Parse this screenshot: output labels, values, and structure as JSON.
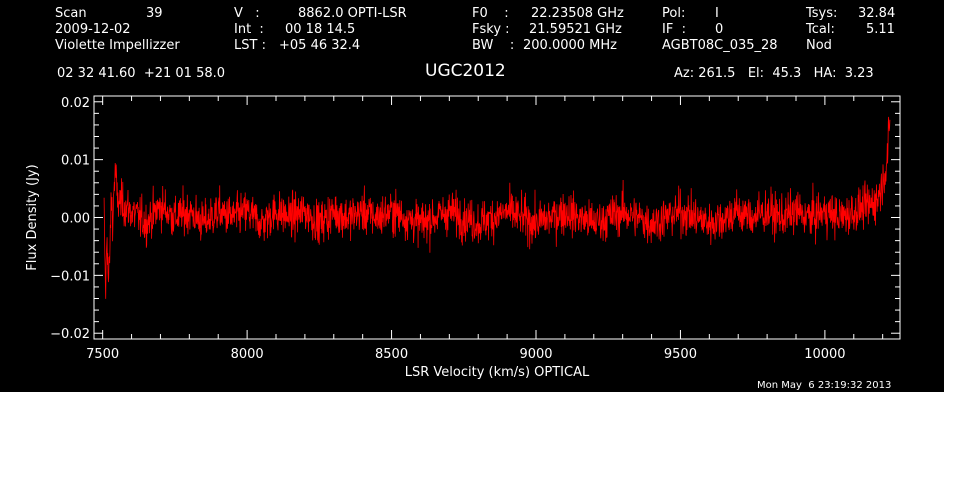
{
  "header": {
    "col1": {
      "scan_label": "Scan",
      "scan_value": "39",
      "date": "2009-12-02",
      "observer": "Violette Impellizzer"
    },
    "col2": {
      "v_label": "V   :",
      "v_value": "8862.0 OPTI-LSR",
      "int_label": "Int  :",
      "int_value": "00 18 14.5",
      "lst_label": "LST :",
      "lst_value": "+05 46 32.4"
    },
    "col3": {
      "f0_label": "F0    :",
      "f0_value": "22.23508 GHz",
      "fsky_label": "Fsky :",
      "fsky_value": "21.59521 GHz",
      "bw_label": "BW    :",
      "bw_value": "200.0000 MHz"
    },
    "col4": {
      "pol_label": "Pol:",
      "pol_value": "I",
      "if_label": "IF  :",
      "if_value": "0",
      "source_id": "AGBT08C_035_28"
    },
    "col5": {
      "tsys_label": "Tsys:",
      "tsys_value": "32.84",
      "tcal_label": "Tcal:",
      "tcal_value": "5.11",
      "mode": "Nod"
    },
    "coords": "02 32 41.60  +21 01 58.0",
    "object_name": "UGC2012",
    "az_el_ha": "Az: 261.5   El:  45.3   HA:  3.23",
    "timestamp": "Mon May  6 23:19:32 2013"
  },
  "colors": {
    "background": "#000000",
    "axes": "#ffffff",
    "trace": "#ff0000"
  },
  "chart_data": {
    "type": "line",
    "title": "UGC2012",
    "xlabel": "LSR Velocity (km/s) OPTICAL",
    "ylabel": "Flux Density (Jy)",
    "xlim": [
      7470,
      10260
    ],
    "ylim": [
      -0.021,
      0.021
    ],
    "x_ticks": [
      7500,
      8000,
      8500,
      9000,
      9500,
      10000
    ],
    "x_tick_labels": [
      "7500",
      "8000",
      "8500",
      "9000",
      "9500",
      "10000"
    ],
    "y_ticks": [
      -0.02,
      -0.01,
      0.0,
      0.01,
      0.02
    ],
    "y_tick_labels": [
      "−0.02",
      "−0.01",
      "0.00",
      "0.01",
      "0.02"
    ],
    "grid": false,
    "series": [
      {
        "values": [
          [
            7505,
            0.001
          ],
          [
            7510,
            -0.014
          ],
          [
            7515,
            -0.002
          ],
          [
            7520,
            -0.012
          ],
          [
            7525,
            -0.006
          ],
          [
            7530,
            0.004
          ],
          [
            7535,
            -0.001
          ],
          [
            7540,
            0.006
          ],
          [
            7545,
            0.008
          ],
          [
            7550,
            0.003
          ],
          [
            7600,
            0.001
          ],
          [
            7650,
            -0.001
          ],
          [
            7700,
            0.002
          ],
          [
            7750,
            0.0
          ],
          [
            7800,
            0.001
          ],
          [
            7850,
            -0.001
          ],
          [
            7900,
            0.001
          ],
          [
            7950,
            0.0
          ],
          [
            8000,
            0.001
          ],
          [
            8050,
            -0.001
          ],
          [
            8100,
            0.001
          ],
          [
            8150,
            0.0
          ],
          [
            8200,
            0.001
          ],
          [
            8250,
            -0.001
          ],
          [
            8300,
            0.001
          ],
          [
            8350,
            0.0
          ],
          [
            8400,
            0.001
          ],
          [
            8450,
            0.0
          ],
          [
            8500,
            0.001
          ],
          [
            8550,
            0.0
          ],
          [
            8600,
            -0.001
          ],
          [
            8650,
            0.0
          ],
          [
            8700,
            0.001
          ],
          [
            8750,
            0.0
          ],
          [
            8800,
            -0.001
          ],
          [
            8850,
            0.0
          ],
          [
            8900,
            0.001
          ],
          [
            8950,
            0.0
          ],
          [
            9000,
            -0.001
          ],
          [
            9050,
            0.0
          ],
          [
            9100,
            0.001
          ],
          [
            9150,
            0.0
          ],
          [
            9200,
            -0.001
          ],
          [
            9250,
            0.0
          ],
          [
            9300,
            0.001
          ],
          [
            9350,
            0.0
          ],
          [
            9400,
            -0.001
          ],
          [
            9450,
            0.0
          ],
          [
            9500,
            0.001
          ],
          [
            9550,
            0.0
          ],
          [
            9600,
            -0.001
          ],
          [
            9650,
            0.0
          ],
          [
            9700,
            0.001
          ],
          [
            9750,
            0.0
          ],
          [
            9800,
            0.001
          ],
          [
            9850,
            0.0
          ],
          [
            9900,
            0.001
          ],
          [
            9950,
            0.0
          ],
          [
            10000,
            0.001
          ],
          [
            10050,
            0.0
          ],
          [
            10100,
            0.001
          ],
          [
            10150,
            0.002
          ],
          [
            10180,
            0.003
          ],
          [
            10200,
            0.006
          ],
          [
            10215,
            0.01
          ],
          [
            10225,
            0.016
          ]
        ],
        "noise_rms": 0.0032
      }
    ]
  }
}
